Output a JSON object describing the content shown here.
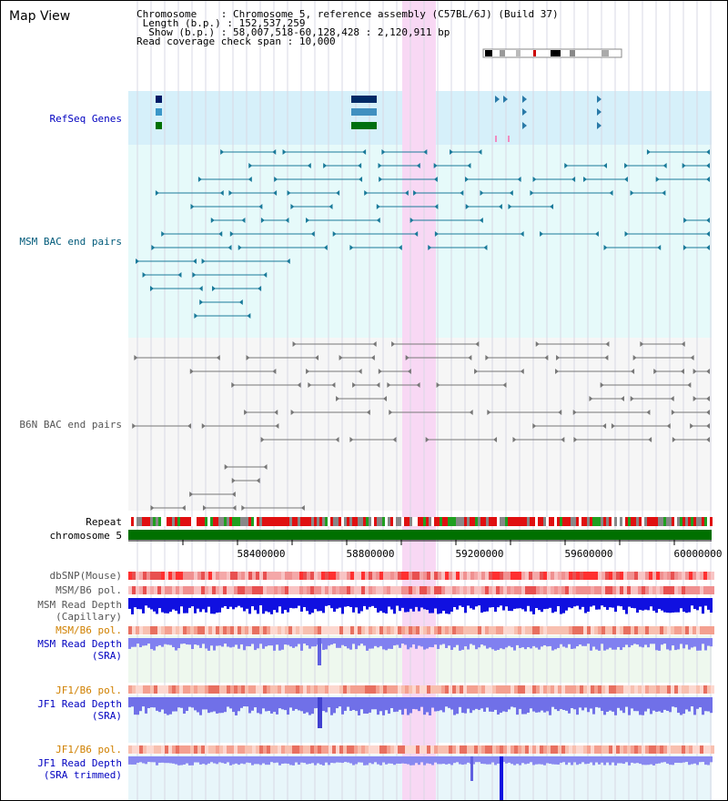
{
  "title": "Map View",
  "info": {
    "chromosome_label": "Chromosome",
    "chromosome_value": "Chromosome 5, reference assembly (C57BL/6J) (Build 37)",
    "length_label": "Length (b.p.)",
    "length_value": "152,537,259",
    "show_label": "Show (b.p.)",
    "show_value": "58,007,518-60,128,428 : 2,120,911 bp",
    "span_label": "Read coverage check span",
    "span_value": "10,000"
  },
  "tracks": {
    "refseq": "RefSeq Genes",
    "msm_bac": "MSM BAC end pairs",
    "b6n_bac": "B6N BAC end pairs",
    "repeat": "Repeat",
    "chromosome": "chromosome 5",
    "dbsnp": "dbSNP(Mouse)",
    "msm_pol": "MSM/B6 pol.",
    "msm_depth_cap_1": "MSM Read Depth",
    "msm_depth_cap_2": "(Capillary)",
    "msm_pol2": "MSM/B6 pol.",
    "msm_depth_sra_1": "MSM Read Depth",
    "msm_depth_sra_2": "(SRA)",
    "jf1_pol": "JF1/B6 pol.",
    "jf1_depth_1": "JF1 Read Depth",
    "jf1_depth_2": "(SRA)",
    "jf1_pol2": "JF1/B6 pol.",
    "jf1_trim_1": "JF1 Read Depth",
    "jf1_trim_2": "(SRA trimmed)"
  },
  "axis": {
    "ticks": [
      "58400000",
      "58800000",
      "59200000",
      "59600000",
      "60000000"
    ]
  },
  "colors": {
    "label_blue": "#0000c0",
    "label_teal": "#005a7a",
    "label_orange": "#d08000",
    "refseq_bg": "#d6f0fa",
    "msm_bg": "#e6fafa",
    "b6n_bg": "#f6f6f6",
    "highlight": "#f8d8f4",
    "chromosome_green": "#007000"
  }
}
